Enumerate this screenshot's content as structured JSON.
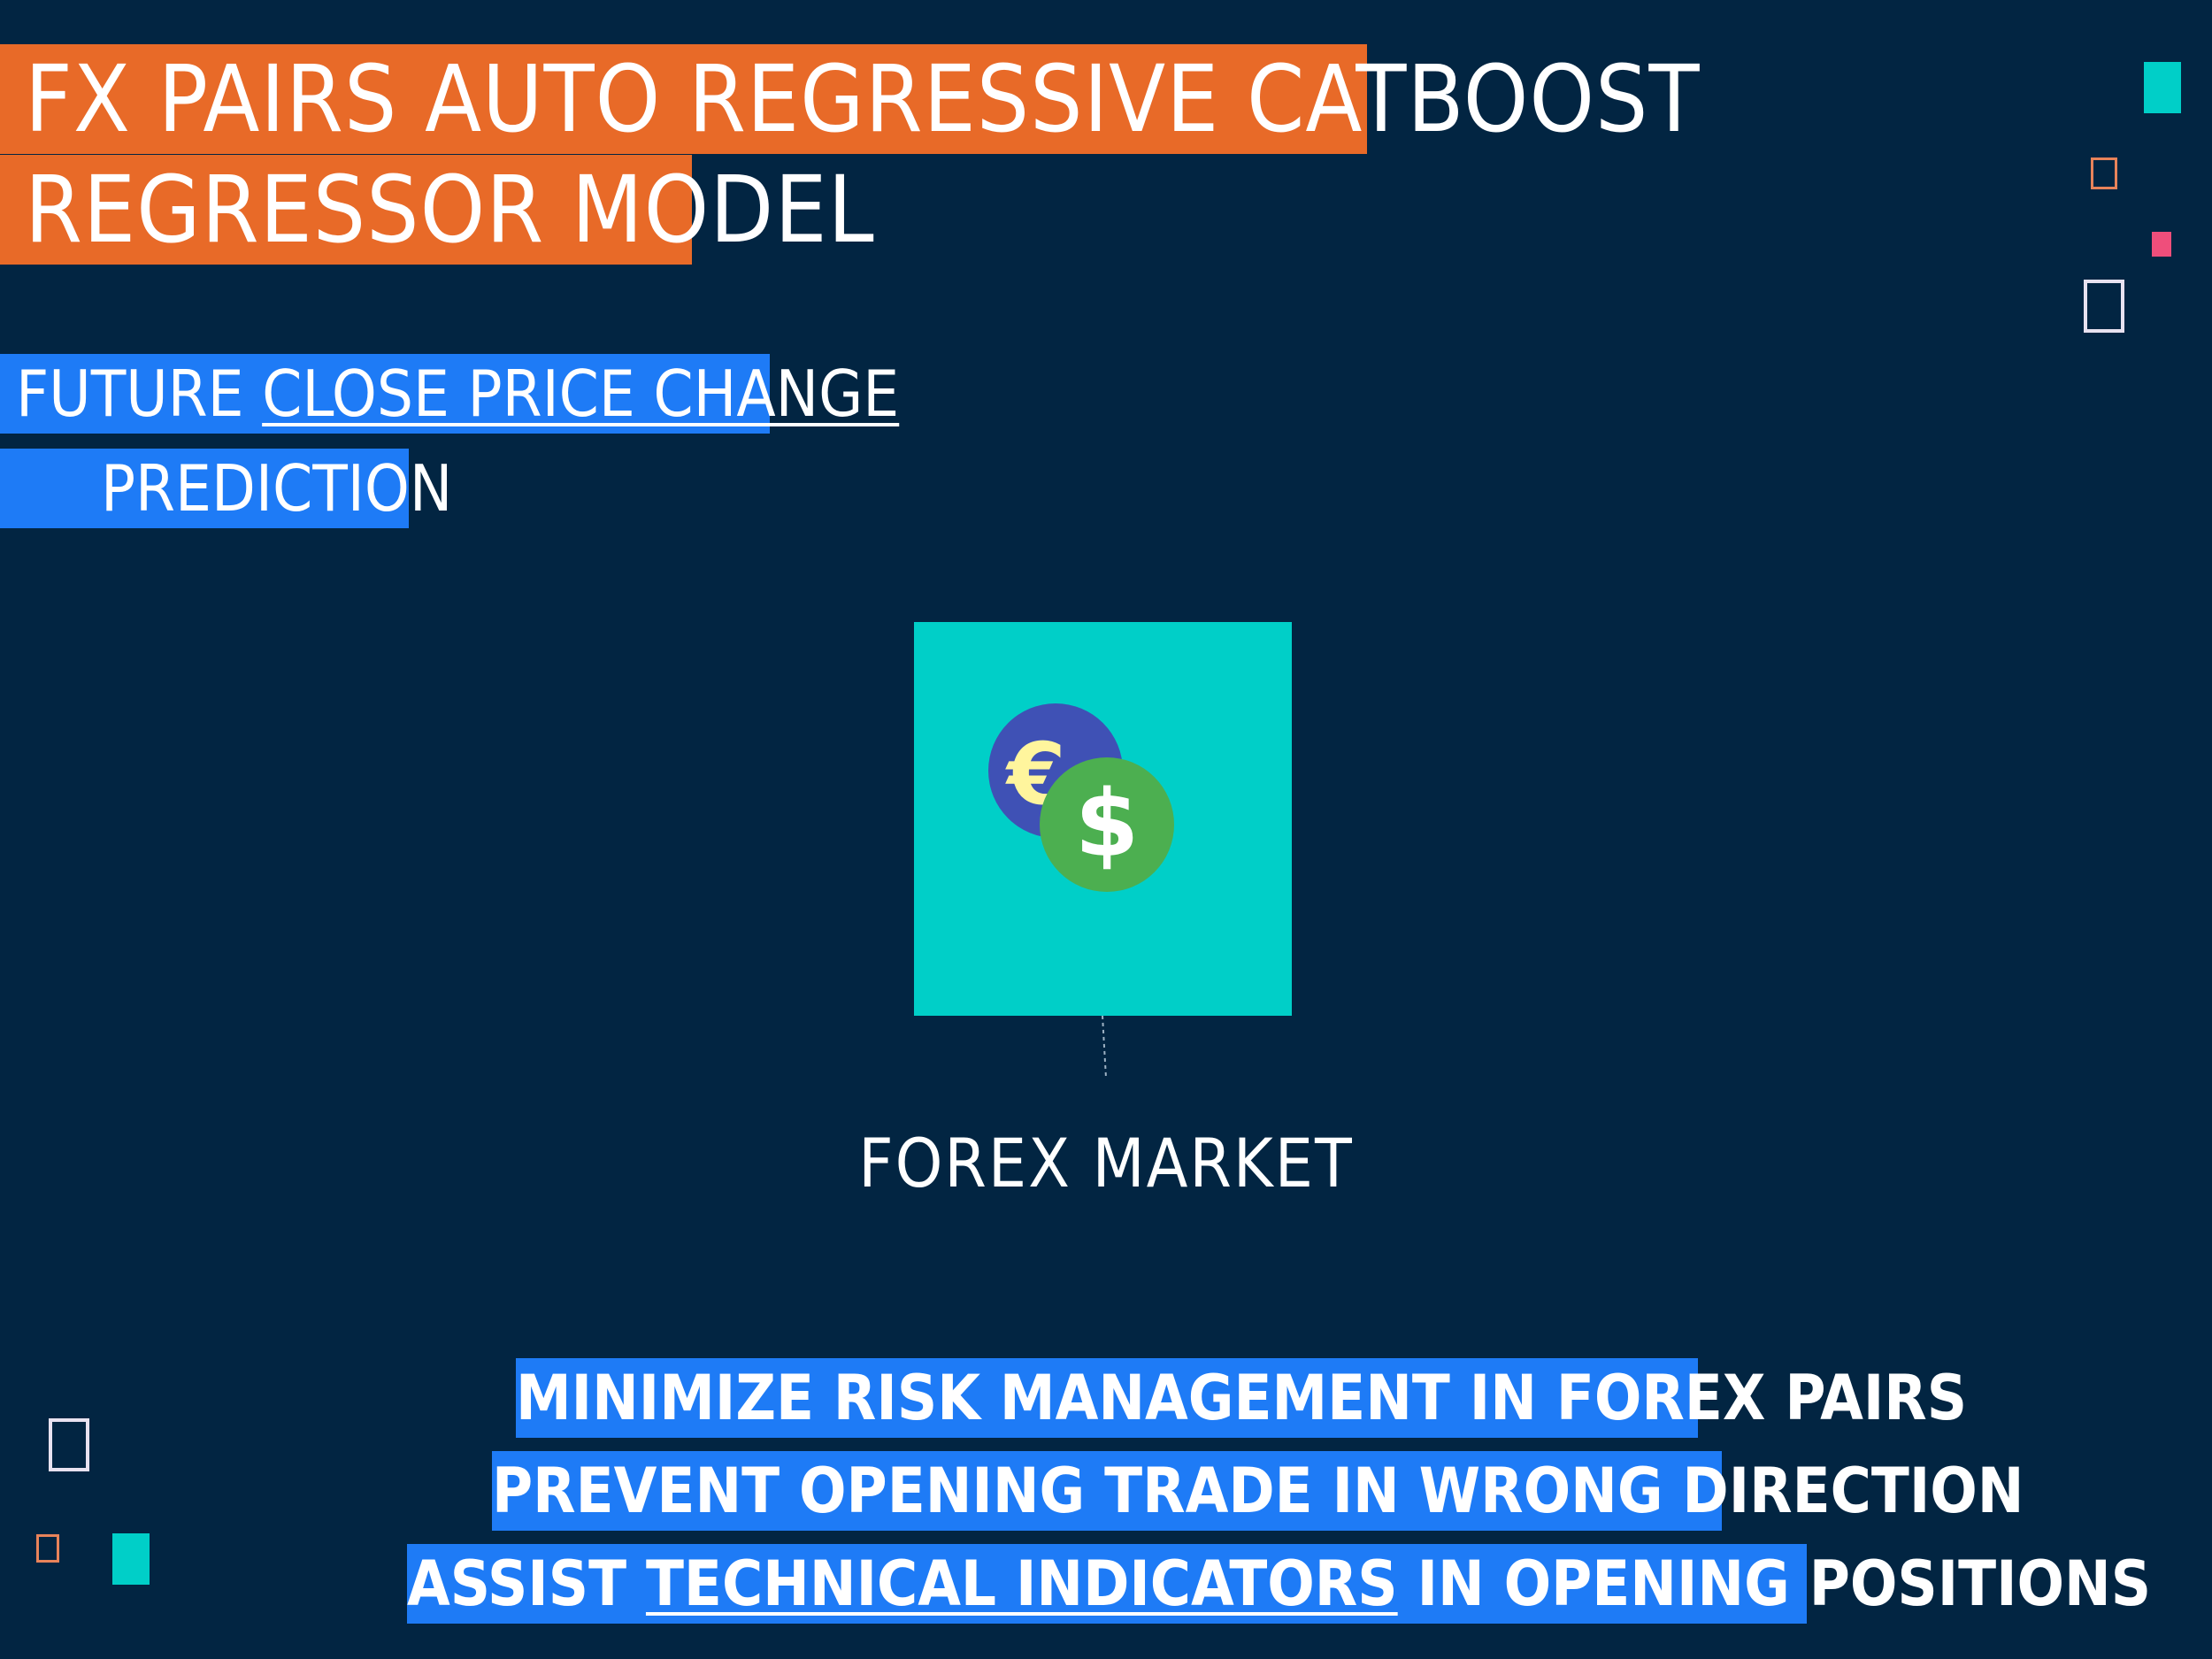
{
  "title": {
    "line1": "FX PAIRS AUTO REGRESSIVE CATBOOST",
    "line2": "REGRESSOR MODEL"
  },
  "subtitle": {
    "prefix": "FUTURE ",
    "underlined": "CLOSE PRICE CHANGE",
    "line2": "PREDICTION"
  },
  "diagram": {
    "node_label": "FOREX MARKET",
    "node_icon": "currency-exchange-icon",
    "euro_symbol": "€",
    "dollar_symbol": "$"
  },
  "bullets": [
    {
      "text": "MINIMIZE RISK MANAGEMENT IN FOREX PAIRS"
    },
    {
      "text": "PREVENT OPENING TRADE IN WRONG DIRECTION"
    },
    {
      "prefix": "ASSIST ",
      "underlined": "TECHNICAL INDICATORS",
      "suffix": " IN OPENING POSITIONS"
    }
  ],
  "colors": {
    "background": "#022542",
    "title_highlight": "#e86a28",
    "subtitle_highlight": "#1e7bf6",
    "node_fill": "#00cfc8",
    "euro_coin": "#3f51b5",
    "dollar_coin": "#4caf50",
    "accent_pink": "#ef4e7b"
  }
}
